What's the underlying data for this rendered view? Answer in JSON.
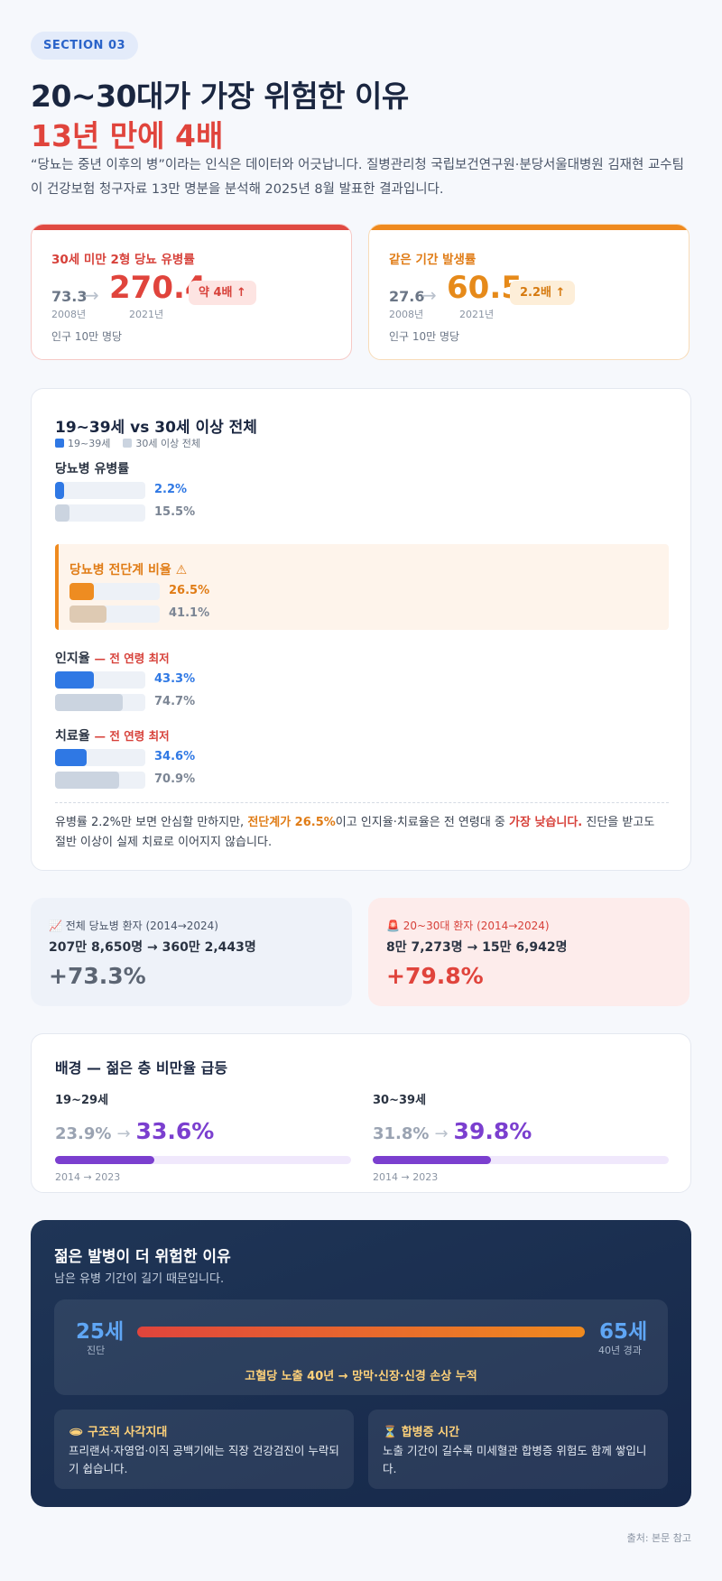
{
  "section_label": "SECTION 03",
  "heading": {
    "line1": "20~30대가 가장 위험한 이유",
    "line2": "13년 만에 4배"
  },
  "lead": "“당뇨는 중년 이후의 병”이라는 인식은 데이터와 어긋납니다. 질병관리청 국립보건연구원·분당서울대병원 김재현 교수팀이 건강보험 청구자료 13만 명분을 분석해 2025년 8월 발표한 결과입니다.",
  "stats": [
    {
      "label": "30세 미만 2형 당뇨 유병률",
      "old_value": "73.3",
      "old_year": "2008년",
      "new_value": "270.4",
      "new_year": "2021년",
      "badge": "약 4배 ↑",
      "unit": "인구 10만 명당"
    },
    {
      "label": "같은 기간 발생률",
      "old_value": "27.6",
      "old_year": "2008년",
      "new_value": "60.5",
      "new_year": "2021년",
      "badge": "2.2배 ↑",
      "unit": "인구 10만 명당"
    }
  ],
  "comparison": {
    "title": "19~39세 vs 30세 이상 전체",
    "legend": [
      "19~39세",
      "30세 이상 전체"
    ],
    "groups": [
      {
        "label": "당뇨병 유병률",
        "warn": "",
        "young": 2.2,
        "young_text": "2.2%",
        "all": 15.5,
        "all_text": "15.5%"
      },
      {
        "label": "당뇨병 전단계 비율 ⚠",
        "warn": "",
        "young": 26.5,
        "young_text": "26.5%",
        "all": 41.1,
        "all_text": "41.1%"
      },
      {
        "label": "인지율",
        "warn": "— 전 연령 최저",
        "young": 43.3,
        "young_text": "43.3%",
        "all": 74.7,
        "all_text": "74.7%"
      },
      {
        "label": "치료율",
        "warn": "— 전 연령 최저",
        "young": 34.6,
        "young_text": "34.6%",
        "all": 70.9,
        "all_text": "70.9%"
      }
    ],
    "note": {
      "p1": "유병률 2.2%만 보면 안심할 만하지만, ",
      "hl1": "전단계가 26.5%",
      "p2": "이고 인지율·치료율은 전 연령대 중 ",
      "hl2": "가장 낮습니다.",
      "p3": " 진단을 받고도 절반 이상이 실제 치료로 이어지지 않습니다."
    }
  },
  "patients": [
    {
      "label": "📈 전체 당뇨병 환자 (2014→2024)",
      "values": "207만 8,650명 → 360만 2,443명",
      "growth": "+73.3%"
    },
    {
      "label": "🚨 20~30대 환자 (2014→2024)",
      "values": "8만 7,273명 → 15만 6,942명",
      "growth": "+79.8%"
    }
  ],
  "obesity": {
    "title": "배경 — 젊은 층 비만율 급등",
    "cols": [
      {
        "label": "19~29세",
        "old": "23.9%",
        "new": "33.6%",
        "new_value": 33.6,
        "years": "2014 → 2023"
      },
      {
        "label": "30~39세",
        "old": "31.8%",
        "new": "39.8%",
        "new_value": 39.8,
        "years": "2014 → 2023"
      }
    ]
  },
  "risk": {
    "title": "젊은 발병이 더 위험한 이유",
    "subtitle": "남은 유병 기간이 길기 때문입니다.",
    "start_age": "25세",
    "start_label": "진단",
    "end_age": "65세",
    "end_label": "40년 경과",
    "caption": "고혈당 노출 40년 → 망막·신장·신경 손상 누적",
    "tips": [
      {
        "title": "🕳 구조적 사각지대",
        "desc": "프리랜서·자영업·이직 공백기에는 직장 건강검진이 누락되기 쉽습니다."
      },
      {
        "title": "⏳ 합병증 시간",
        "desc": "노출 기간이 길수록 미세혈관 합병증 위험도 함께 쌓입니다."
      }
    ]
  },
  "source": "출처: 본문 참고",
  "colors": {
    "red": "#e0443c",
    "orange": "#ef8a1f",
    "blue": "#2f78e4",
    "purple": "#7b3fcf",
    "navy": "#1a2640"
  }
}
